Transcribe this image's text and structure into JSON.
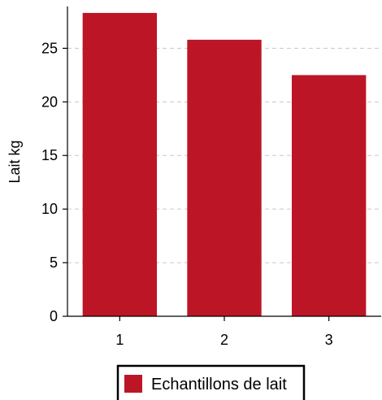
{
  "chart_data": {
    "type": "bar",
    "categories": [
      "1",
      "2",
      "3"
    ],
    "series": [
      {
        "name": "Echantillons de lait",
        "values": [
          28.3,
          25.8,
          22.5
        ],
        "color": "#bc1626"
      }
    ],
    "title": "",
    "xlabel": "",
    "ylabel": "Lait kg",
    "ylim": [
      0,
      28.9
    ],
    "yticks": [
      "0",
      "5",
      "10",
      "15",
      "20",
      "25"
    ],
    "grid": true,
    "legend_position": "bottom-center"
  }
}
